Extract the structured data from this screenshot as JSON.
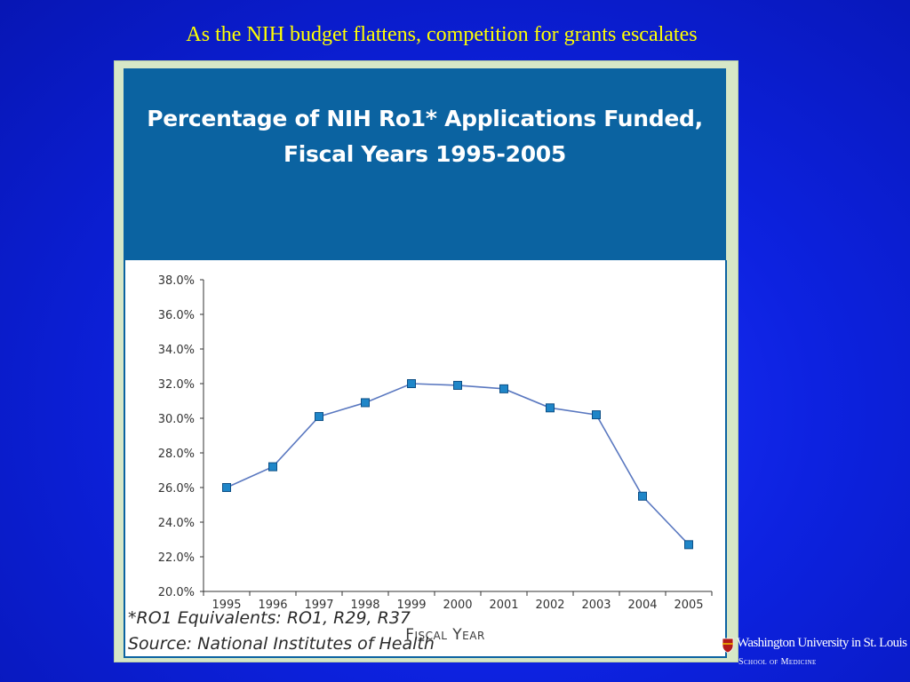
{
  "slide": {
    "title": "As the NIH budget flattens, competition for grants escalates"
  },
  "figure": {
    "title_line1": "Percentage of NIH Ro1* Applications Funded,",
    "title_line2": "Fiscal Years 1995-2005",
    "footnote_line1": "*RO1 Equivalents: RO1, R29, R37",
    "footnote_line2": "Source: National Institutes of Health"
  },
  "logo": {
    "name": "Washington University in St. Louis",
    "subtitle": "School of Medicine"
  },
  "colors": {
    "background": "#0d22e0",
    "slide_title": "#ffff00",
    "header": "#0b63a1",
    "figure_frame": "#d7e7c7",
    "line": "#5a78c0",
    "marker": "#1f86c8"
  },
  "chart_data": {
    "type": "line",
    "title": "Percentage of NIH Ro1* Applications Funded, Fiscal Years 1995-2005",
    "xlabel": "Fiscal Year",
    "ylabel": "",
    "categories": [
      "1995",
      "1996",
      "1997",
      "1998",
      "1999",
      "2000",
      "2001",
      "2002",
      "2003",
      "2004",
      "2005"
    ],
    "series": [
      {
        "values": [
          26.0,
          27.2,
          30.1,
          30.9,
          32.0,
          31.9,
          31.7,
          30.6,
          30.2,
          25.5,
          22.7
        ]
      }
    ],
    "ylim": [
      20,
      38
    ],
    "yticks": [
      20,
      22,
      24,
      26,
      28,
      30,
      32,
      34,
      36,
      38
    ],
    "ytick_labels": [
      "20.0%",
      "22.0%",
      "24.0%",
      "26.0%",
      "28.0%",
      "30.0%",
      "32.0%",
      "34.0%",
      "36.0%",
      "38.0%"
    ],
    "grid": false,
    "legend": "none"
  }
}
